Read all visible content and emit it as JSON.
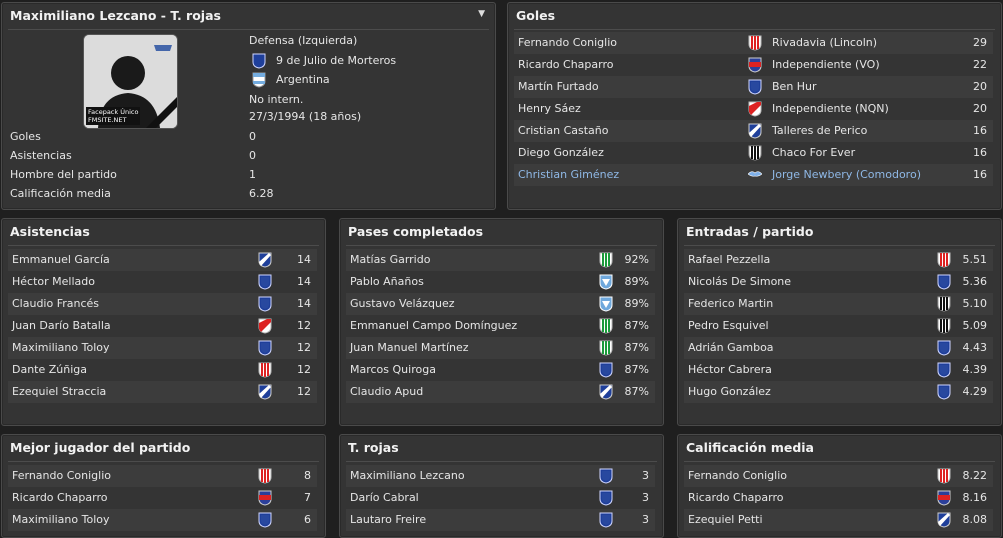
{
  "player": {
    "title": "Maximiliano Lezcano - T. rojas",
    "position": "Defensa (Izquierda)",
    "club": "9 de Julio de Morteros",
    "nation": "Argentina",
    "intl": "No intern.",
    "dob": "27/3/1994 (18 años)",
    "photo_text": "Facepack Único\nFMSITE.NET",
    "stats": [
      {
        "label": "Goles",
        "value": "0"
      },
      {
        "label": "Asistencias",
        "value": "0"
      },
      {
        "label": "Hombre del partido",
        "value": "1"
      },
      {
        "label": "Calificación media",
        "value": "6.28"
      }
    ]
  },
  "colors": {
    "highlight": "#8fb8e6",
    "panel": "#343434",
    "bg": "#1f1f1f"
  },
  "goles": {
    "title": "Goles",
    "rows": [
      {
        "name": "Fernando Coniglio",
        "club": "Rivadavia (Lincoln)",
        "badge": "red-stripes",
        "value": "29"
      },
      {
        "name": "Ricardo Chaparro",
        "club": "Independiente (VO)",
        "badge": "red-blue",
        "value": "22"
      },
      {
        "name": "Martín Furtado",
        "club": "Ben Hur",
        "badge": "blue-shield",
        "value": "20"
      },
      {
        "name": "Henry Sáez",
        "club": "Independiente (NQN)",
        "badge": "red-sash",
        "value": "20"
      },
      {
        "name": "Cristian Castaño",
        "club": "Talleres de Perico",
        "badge": "blue-white-sash",
        "value": "16"
      },
      {
        "name": "Diego González",
        "club": "Chaco For Ever",
        "badge": "black-white",
        "value": "16"
      },
      {
        "name": "Christian Giménez",
        "club": "Jorge Newbery (Comodoro)",
        "badge": "wings",
        "value": "16",
        "highlight": true
      }
    ]
  },
  "asistencias": {
    "title": "Asistencias",
    "rows": [
      {
        "name": "Emmanuel García",
        "badge": "blue-white-sash",
        "value": "14"
      },
      {
        "name": "Héctor Mellado",
        "badge": "blue-shield",
        "value": "14"
      },
      {
        "name": "Claudio Francés",
        "badge": "blue-shield",
        "value": "14"
      },
      {
        "name": "Juan Darío Batalla",
        "badge": "red-sash",
        "value": "12"
      },
      {
        "name": "Maximiliano Toloy",
        "badge": "blue-shield",
        "value": "12"
      },
      {
        "name": "Dante Zúñiga",
        "badge": "red-stripes",
        "value": "12"
      },
      {
        "name": "Ezequiel Straccia",
        "badge": "blue-white-sash",
        "value": "12"
      }
    ]
  },
  "pases": {
    "title": "Pases completados",
    "rows": [
      {
        "name": "Matías Garrido",
        "badge": "green-stripes",
        "value": "92%"
      },
      {
        "name": "Pablo Añaños",
        "badge": "light-blue",
        "value": "89%"
      },
      {
        "name": "Gustavo Velázquez",
        "badge": "light-blue",
        "value": "89%"
      },
      {
        "name": "Emmanuel Campo Domínguez",
        "badge": "green-stripes",
        "value": "87%"
      },
      {
        "name": "Juan Manuel Martínez",
        "badge": "green-stripes",
        "value": "87%"
      },
      {
        "name": "Marcos Quiroga",
        "badge": "blue-shield",
        "value": "87%"
      },
      {
        "name": "Claudio Apud",
        "badge": "blue-white-sash",
        "value": "87%"
      }
    ]
  },
  "entradas": {
    "title": "Entradas / partido",
    "rows": [
      {
        "name": "Rafael Pezzella",
        "badge": "red-stripes",
        "value": "5.51"
      },
      {
        "name": "Nicolás De Simone",
        "badge": "blue-shield",
        "value": "5.36"
      },
      {
        "name": "Federico Martin",
        "badge": "black-white",
        "value": "5.10"
      },
      {
        "name": "Pedro Esquivel",
        "badge": "black-white",
        "value": "5.09"
      },
      {
        "name": "Adrián Gamboa",
        "badge": "blue-shield",
        "value": "4.43"
      },
      {
        "name": "Héctor Cabrera",
        "badge": "blue-shield",
        "value": "4.39"
      },
      {
        "name": "Hugo González",
        "badge": "blue-shield",
        "value": "4.29"
      }
    ]
  },
  "mejor": {
    "title": "Mejor jugador del partido",
    "rows": [
      {
        "name": "Fernando Coniglio",
        "badge": "red-stripes",
        "value": "8"
      },
      {
        "name": "Ricardo Chaparro",
        "badge": "red-blue",
        "value": "7"
      },
      {
        "name": "Maximiliano Toloy",
        "badge": "blue-shield",
        "value": "6"
      }
    ]
  },
  "rojas": {
    "title": "T. rojas",
    "rows": [
      {
        "name": "Maximiliano Lezcano",
        "badge": "blue-shield",
        "value": "3"
      },
      {
        "name": "Darío Cabral",
        "badge": "blue-shield",
        "value": "3"
      },
      {
        "name": "Lautaro Freire",
        "badge": "blue-shield",
        "value": "3"
      }
    ]
  },
  "calificacion": {
    "title": "Calificación media",
    "rows": [
      {
        "name": "Fernando Coniglio",
        "badge": "red-stripes",
        "value": "8.22"
      },
      {
        "name": "Ricardo Chaparro",
        "badge": "red-blue",
        "value": "8.16"
      },
      {
        "name": "Ezequiel Petti",
        "badge": "blue-white-sash",
        "value": "8.08"
      }
    ]
  }
}
